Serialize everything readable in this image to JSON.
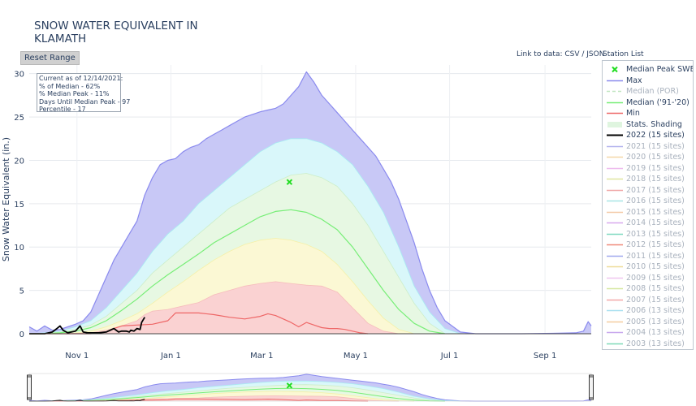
{
  "title_lines": [
    "SNOW WATER EQUIVALENT IN",
    "KLAMATH"
  ],
  "reset_label": "Reset Range",
  "links": {
    "prefix": "Link to data: ",
    "csv": "CSV",
    "sep": " / ",
    "json": "JSON"
  },
  "station_list_label": "Station List",
  "info": {
    "line1": "Current as of 12/14/2021:",
    "line2": "% of Median - 62%",
    "line3": "% Median Peak - 11%",
    "line4": "Days Until Median Peak - 97",
    "line5": "Percentile - 17"
  },
  "legend": [
    {
      "label": "Median Peak SWE",
      "kind": "marker",
      "color": "#22dd22"
    },
    {
      "label": "Max",
      "kind": "line",
      "color": "#8a8aee"
    },
    {
      "label": "Median (POR)",
      "kind": "dash",
      "color": "#bfe6bf"
    },
    {
      "label": "Median ('91-'20)",
      "kind": "line",
      "color": "#77ee77"
    },
    {
      "label": "Min",
      "kind": "line",
      "color": "#ee6666"
    },
    {
      "label": "Stats. Shading",
      "kind": "fill",
      "color": "#dff5df"
    },
    {
      "label": "2022 (15 sites)",
      "kind": "thick",
      "color": "#000000"
    },
    {
      "label": "2021 (15 sites)",
      "kind": "faint",
      "color": "#b5b5ee"
    },
    {
      "label": "2020 (15 sites)",
      "kind": "faint",
      "color": "#f5d8a8"
    },
    {
      "label": "2019 (15 sites)",
      "kind": "faint",
      "color": "#eebbee"
    },
    {
      "label": "2018 (15 sites)",
      "kind": "faint",
      "color": "#e0e6a0"
    },
    {
      "label": "2017 (15 sites)",
      "kind": "faint",
      "color": "#f0a8a8"
    },
    {
      "label": "2016 (15 sites)",
      "kind": "faint",
      "color": "#a8e6e6"
    },
    {
      "label": "2015 (15 sites)",
      "kind": "faint",
      "color": "#f3c9a6"
    },
    {
      "label": "2014 (15 sites)",
      "kind": "faint",
      "color": "#d8a8ee"
    },
    {
      "label": "2013 (15 sites)",
      "kind": "faint",
      "color": "#7fd9c0"
    },
    {
      "label": "2012 (15 sites)",
      "kind": "faint",
      "color": "#f08a7a"
    },
    {
      "label": "2011 (15 sites)",
      "kind": "faint",
      "color": "#a0a8ee"
    },
    {
      "label": "2010 (15 sites)",
      "kind": "faint",
      "color": "#eedd99"
    },
    {
      "label": "2009 (15 sites)",
      "kind": "faint",
      "color": "#f0c6f0"
    },
    {
      "label": "2008 (15 sites)",
      "kind": "faint",
      "color": "#d6e8a0"
    },
    {
      "label": "2007 (15 sites)",
      "kind": "faint",
      "color": "#f3a8a8"
    },
    {
      "label": "2006 (13 sites)",
      "kind": "faint",
      "color": "#a8dff0"
    },
    {
      "label": "2005 (13 sites)",
      "kind": "faint",
      "color": "#f4cda0"
    },
    {
      "label": "2004 (13 sites)",
      "kind": "faint",
      "color": "#c8a8ee"
    },
    {
      "label": "2003 (13 sites)",
      "kind": "faint",
      "color": "#7fd9b8"
    }
  ],
  "chart_data": {
    "type": "area",
    "ylabel": "Snow Water Equivalent (in.)",
    "xlabel": "",
    "x_unit": "days since Oct 1",
    "xlim": [
      0,
      365
    ],
    "ylim": [
      0,
      31
    ],
    "y_ticks": [
      0,
      5,
      10,
      15,
      20,
      25,
      30
    ],
    "x_ticks": [
      {
        "label": "Nov 1",
        "day": 31
      },
      {
        "label": "Jan 1",
        "day": 92
      },
      {
        "label": "Mar 1",
        "day": 151
      },
      {
        "label": "May 1",
        "day": 212
      },
      {
        "label": "Jul 1",
        "day": 273
      },
      {
        "label": "Sep 1",
        "day": 335
      }
    ],
    "median_peak": {
      "day": 169,
      "swe": 17.5
    },
    "series": [
      {
        "name": "Max",
        "color": "#8a8aee",
        "fill": "#c8c8f6",
        "x": [
          0,
          5,
          10,
          15,
          20,
          25,
          30,
          35,
          40,
          45,
          50,
          55,
          60,
          65,
          70,
          75,
          80,
          85,
          90,
          95,
          100,
          105,
          110,
          115,
          120,
          125,
          130,
          135,
          140,
          145,
          150,
          155,
          160,
          165,
          170,
          175,
          180,
          185,
          190,
          195,
          200,
          205,
          210,
          215,
          220,
          225,
          230,
          235,
          240,
          245,
          250,
          255,
          260,
          265,
          270,
          280,
          290,
          300,
          320,
          340,
          355,
          360,
          363,
          365
        ],
        "values": [
          0.8,
          0.3,
          0.9,
          0.4,
          0.5,
          0.8,
          1.1,
          1.5,
          2.5,
          4.5,
          6.5,
          8.5,
          10,
          11.5,
          13,
          16,
          18,
          19.5,
          20,
          20.2,
          21,
          21.5,
          21.8,
          22.5,
          23,
          23.5,
          24,
          24.5,
          25,
          25.3,
          25.6,
          25.8,
          26,
          26.5,
          27.5,
          28.5,
          30.2,
          29,
          27.5,
          26.5,
          25.5,
          24.5,
          23.5,
          22.5,
          21.5,
          20.5,
          19,
          17.5,
          15.5,
          13,
          10.5,
          7.5,
          5,
          3,
          1.5,
          0.2,
          0,
          0,
          0,
          0.05,
          0.1,
          0.3,
          1.4,
          0.9
        ]
      },
      {
        "name": "90th Percentile",
        "color": "#a8ecf2",
        "fill": "#d9f7fa",
        "x": [
          0,
          10,
          20,
          30,
          40,
          50,
          60,
          70,
          80,
          90,
          100,
          110,
          120,
          130,
          140,
          150,
          160,
          170,
          180,
          190,
          200,
          210,
          220,
          230,
          240,
          250,
          260,
          270,
          280
        ],
        "values": [
          0,
          0.1,
          0.3,
          0.8,
          1.5,
          3,
          5,
          7,
          9.5,
          11.5,
          13,
          15,
          16.5,
          18,
          19.5,
          21,
          22,
          22.5,
          22.5,
          22,
          21,
          19.5,
          17,
          14,
          10,
          5.5,
          2.5,
          0.6,
          0
        ]
      },
      {
        "name": "70th Percentile",
        "color": "#cdeec9",
        "fill": "#e7f8e3",
        "x": [
          0,
          10,
          20,
          30,
          40,
          50,
          60,
          70,
          80,
          90,
          100,
          110,
          120,
          130,
          140,
          150,
          160,
          170,
          180,
          190,
          200,
          210,
          220,
          230,
          240,
          250,
          260,
          270
        ],
        "values": [
          0,
          0.05,
          0.2,
          0.5,
          1,
          2,
          3.5,
          5,
          7,
          8.5,
          10,
          11.5,
          13,
          14.5,
          15.5,
          16.5,
          17.5,
          18.3,
          18.5,
          18,
          17,
          15,
          12.5,
          9.5,
          6.5,
          3.5,
          1.2,
          0
        ]
      },
      {
        "name": "Median ('91-'20)",
        "color": "#77ee77",
        "fill": "none",
        "x": [
          0,
          10,
          20,
          30,
          40,
          50,
          60,
          70,
          80,
          90,
          100,
          110,
          120,
          130,
          140,
          150,
          160,
          170,
          180,
          190,
          200,
          210,
          220,
          230,
          240,
          250,
          260,
          270
        ],
        "values": [
          0,
          0,
          0.1,
          0.3,
          0.7,
          1.5,
          2.7,
          4,
          5.5,
          6.8,
          8,
          9.2,
          10.5,
          11.5,
          12.5,
          13.5,
          14.1,
          14.3,
          14,
          13.2,
          12,
          10,
          7.5,
          5,
          2.8,
          1.2,
          0.3,
          0
        ]
      },
      {
        "name": "30th Percentile",
        "color": "#f5f0a8",
        "fill": "#fbf8d4",
        "x": [
          0,
          10,
          20,
          30,
          40,
          50,
          60,
          70,
          80,
          90,
          100,
          110,
          120,
          130,
          140,
          150,
          160,
          170,
          180,
          190,
          200,
          210,
          220,
          230,
          240,
          250
        ],
        "values": [
          0,
          0,
          0,
          0.1,
          0.3,
          0.8,
          1.5,
          2.3,
          3.5,
          4.8,
          6,
          7.3,
          8.5,
          9.5,
          10.3,
          10.8,
          11,
          10.8,
          10.3,
          9.5,
          8,
          6,
          3.8,
          1.8,
          0.5,
          0
        ]
      },
      {
        "name": "10th Percentile",
        "color": "#f6bcbc",
        "fill": "#fad2d2",
        "x": [
          0,
          20,
          40,
          50,
          60,
          70,
          75,
          80,
          90,
          100,
          110,
          120,
          130,
          140,
          150,
          160,
          170,
          180,
          190,
          200,
          210,
          220,
          230,
          240
        ],
        "values": [
          0,
          0,
          0.1,
          0.4,
          0.9,
          1.5,
          2.2,
          2.6,
          2.8,
          3.2,
          3.6,
          4.5,
          5,
          5.5,
          5.8,
          6,
          5.8,
          5.6,
          5.5,
          4.8,
          3,
          1.2,
          0.3,
          0
        ]
      },
      {
        "name": "Min",
        "color": "#ee6666",
        "fill": "none",
        "x": [
          0,
          20,
          40,
          50,
          55,
          60,
          70,
          80,
          90,
          95,
          100,
          110,
          120,
          130,
          140,
          150,
          155,
          160,
          165,
          170,
          175,
          180,
          185,
          190,
          195,
          200,
          205,
          210,
          215,
          220
        ],
        "values": [
          0,
          0,
          0,
          0.2,
          0.6,
          0.9,
          1,
          1.1,
          1.5,
          2.4,
          2.4,
          2.4,
          2.2,
          1.9,
          1.7,
          2,
          2.3,
          2.1,
          1.7,
          1.3,
          0.8,
          1.3,
          1,
          0.7,
          0.6,
          0.6,
          0.5,
          0.3,
          0.1,
          0
        ]
      },
      {
        "name": "2022 (15 sites)",
        "color": "#000000",
        "fill": "none",
        "x": [
          0,
          5,
          10,
          15,
          18,
          20,
          22,
          25,
          30,
          33,
          35,
          38,
          40,
          45,
          50,
          55,
          58,
          60,
          63,
          65,
          66,
          68,
          70,
          72,
          73,
          75
        ],
        "values": [
          0,
          0,
          0,
          0.2,
          0.6,
          0.9,
          0.4,
          0.1,
          0.3,
          0.9,
          0.2,
          0.1,
          0.1,
          0.1,
          0.2,
          0.6,
          0.2,
          0.3,
          0.3,
          0.2,
          0.4,
          0.3,
          0.6,
          0.5,
          1.3,
          1.9
        ]
      }
    ]
  }
}
